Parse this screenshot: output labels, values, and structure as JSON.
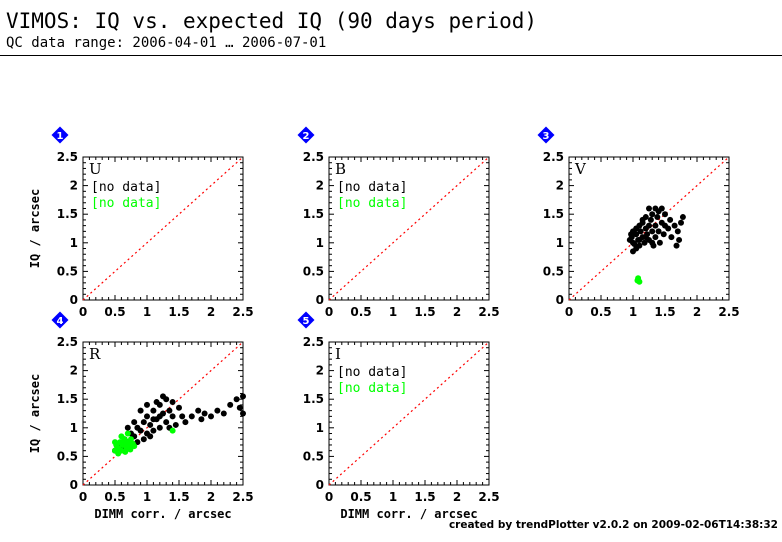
{
  "header": {
    "title": "VIMOS: IQ vs. expected IQ (90 days period)",
    "subtitle": "QC data range: 2006-04-01 … 2006-07-01"
  },
  "footer": {
    "credit": "created by trendPlotter v2.0.2 on 2009-02-06T14:38:32"
  },
  "colors": {
    "reference_line": "#ff0000",
    "series_black": "#000000",
    "series_green": "#00ff00",
    "badge": "#0000ff"
  },
  "chart_data": [
    {
      "type": "scatter",
      "number": "1",
      "filter": "U",
      "xlim": [
        0,
        2.5
      ],
      "ylim": [
        0,
        2.5
      ],
      "xticks": [
        "0",
        "0.5",
        "1",
        "1.5",
        "2",
        "2.5"
      ],
      "yticks": [
        "0",
        "0.5",
        "1",
        "1.5",
        "2",
        "2.5"
      ],
      "xlabel": "",
      "ylabel": "IQ / arcsec",
      "reference_line": "y = x",
      "no_data": [
        "[no data]",
        "[no data]"
      ],
      "series": [
        {
          "color": "#000000",
          "points": []
        },
        {
          "color": "#00ff00",
          "points": []
        }
      ]
    },
    {
      "type": "scatter",
      "number": "2",
      "filter": "B",
      "xlim": [
        0,
        2.5
      ],
      "ylim": [
        0,
        2.5
      ],
      "xticks": [
        "0",
        "0.5",
        "1",
        "1.5",
        "2",
        "2.5"
      ],
      "yticks": [
        "0",
        "0.5",
        "1",
        "1.5",
        "2",
        "2.5"
      ],
      "xlabel": "",
      "ylabel": "",
      "reference_line": "y = x",
      "no_data": [
        "[no data]",
        "[no data]"
      ],
      "series": [
        {
          "color": "#000000",
          "points": []
        },
        {
          "color": "#00ff00",
          "points": []
        }
      ]
    },
    {
      "type": "scatter",
      "number": "3",
      "filter": "V",
      "xlim": [
        0,
        2.5
      ],
      "ylim": [
        0,
        2.5
      ],
      "xticks": [
        "0",
        "0.5",
        "1",
        "1.5",
        "2",
        "2.5"
      ],
      "yticks": [
        "0",
        "0.5",
        "1",
        "1.5",
        "2",
        "2.5"
      ],
      "xlabel": "",
      "ylabel": "",
      "reference_line": "y = x",
      "no_data": [],
      "series": [
        {
          "color": "#000000",
          "points": [
            [
              0.95,
              1.05
            ],
            [
              0.98,
              1.1
            ],
            [
              1.0,
              1.0
            ],
            [
              1.0,
              1.2
            ],
            [
              1.02,
              0.98
            ],
            [
              1.05,
              1.15
            ],
            [
              1.05,
              1.25
            ],
            [
              1.08,
              1.05
            ],
            [
              1.1,
              1.3
            ],
            [
              1.1,
              0.95
            ],
            [
              1.12,
              1.2
            ],
            [
              1.15,
              1.1
            ],
            [
              1.15,
              1.35
            ],
            [
              1.18,
              1.0
            ],
            [
              1.2,
              1.25
            ],
            [
              1.2,
              1.45
            ],
            [
              1.22,
              1.15
            ],
            [
              1.25,
              1.3
            ],
            [
              1.25,
              1.05
            ],
            [
              1.28,
              1.4
            ],
            [
              1.3,
              1.2
            ],
            [
              1.3,
              1.5
            ],
            [
              1.32,
              0.95
            ],
            [
              1.35,
              1.1
            ],
            [
              1.35,
              1.3
            ],
            [
              1.38,
              1.45
            ],
            [
              1.4,
              1.2
            ],
            [
              1.4,
              1.55
            ],
            [
              1.42,
              1.0
            ],
            [
              1.45,
              1.35
            ],
            [
              1.48,
              1.15
            ],
            [
              1.5,
              1.3
            ],
            [
              1.5,
              1.5
            ],
            [
              1.55,
              1.25
            ],
            [
              1.58,
              1.4
            ],
            [
              1.6,
              1.1
            ],
            [
              1.65,
              1.3
            ],
            [
              1.7,
              1.2
            ],
            [
              1.75,
              1.35
            ],
            [
              1.78,
              1.45
            ],
            [
              1.68,
              0.95
            ],
            [
              1.72,
              1.05
            ],
            [
              1.0,
              0.85
            ],
            [
              1.05,
              0.9
            ],
            [
              1.15,
              1.4
            ],
            [
              1.25,
              1.6
            ],
            [
              1.35,
              1.6
            ],
            [
              1.45,
              1.6
            ],
            [
              0.97,
              1.15
            ],
            [
              1.1,
              1.05
            ],
            [
              1.2,
              1.1
            ],
            [
              1.3,
              1.0
            ]
          ]
        },
        {
          "color": "#00ff00",
          "points": [
            [
              1.08,
              0.38
            ],
            [
              1.1,
              0.32
            ],
            [
              1.07,
              0.34
            ]
          ]
        }
      ]
    },
    {
      "type": "scatter",
      "number": "4",
      "filter": "R",
      "xlim": [
        0,
        2.5
      ],
      "ylim": [
        0,
        2.5
      ],
      "xticks": [
        "0",
        "0.5",
        "1",
        "1.5",
        "2",
        "2.5"
      ],
      "yticks": [
        "0",
        "0.5",
        "1",
        "1.5",
        "2",
        "2.5"
      ],
      "xlabel": "DIMM corr. / arcsec",
      "ylabel": "IQ / arcsec",
      "reference_line": "y = x",
      "no_data": [],
      "series": [
        {
          "color": "#000000",
          "points": [
            [
              0.5,
              0.6
            ],
            [
              0.55,
              0.7
            ],
            [
              0.6,
              0.65
            ],
            [
              0.65,
              0.8
            ],
            [
              0.7,
              0.75
            ],
            [
              0.75,
              0.9
            ],
            [
              0.8,
              0.85
            ],
            [
              0.85,
              1.0
            ],
            [
              0.9,
              0.95
            ],
            [
              0.95,
              1.1
            ],
            [
              1.0,
              0.9
            ],
            [
              1.0,
              1.2
            ],
            [
              1.05,
              1.05
            ],
            [
              1.1,
              1.3
            ],
            [
              1.1,
              0.95
            ],
            [
              1.15,
              1.15
            ],
            [
              1.2,
              1.4
            ],
            [
              1.2,
              1.0
            ],
            [
              1.25,
              1.25
            ],
            [
              1.3,
              1.1
            ],
            [
              1.3,
              1.5
            ],
            [
              1.35,
              1.3
            ],
            [
              1.4,
              1.2
            ],
            [
              1.4,
              1.45
            ],
            [
              1.5,
              1.35
            ],
            [
              1.55,
              1.2
            ],
            [
              1.6,
              1.1
            ],
            [
              1.7,
              1.2
            ],
            [
              1.8,
              1.3
            ],
            [
              1.85,
              1.15
            ],
            [
              1.9,
              1.25
            ],
            [
              2.0,
              1.2
            ],
            [
              2.1,
              1.3
            ],
            [
              2.2,
              1.25
            ],
            [
              2.3,
              1.4
            ],
            [
              2.4,
              1.5
            ],
            [
              2.45,
              1.35
            ],
            [
              2.5,
              1.25
            ],
            [
              2.5,
              1.55
            ],
            [
              0.9,
              1.3
            ],
            [
              1.0,
              1.4
            ],
            [
              0.95,
              0.8
            ],
            [
              1.05,
              0.85
            ],
            [
              1.15,
              1.45
            ],
            [
              1.25,
              1.55
            ],
            [
              0.8,
              1.1
            ],
            [
              0.7,
              1.0
            ],
            [
              1.35,
              1.0
            ],
            [
              1.45,
              1.05
            ],
            [
              0.85,
              0.75
            ],
            [
              1.1,
              1.15
            ],
            [
              1.2,
              1.2
            ]
          ]
        },
        {
          "color": "#00ff00",
          "points": [
            [
              0.5,
              0.6
            ],
            [
              0.52,
              0.7
            ],
            [
              0.55,
              0.65
            ],
            [
              0.58,
              0.75
            ],
            [
              0.6,
              0.6
            ],
            [
              0.62,
              0.7
            ],
            [
              0.65,
              0.8
            ],
            [
              0.68,
              0.65
            ],
            [
              0.7,
              0.75
            ],
            [
              0.72,
              0.7
            ],
            [
              0.75,
              0.8
            ],
            [
              0.78,
              0.72
            ],
            [
              0.8,
              0.68
            ],
            [
              0.55,
              0.55
            ],
            [
              0.6,
              0.85
            ],
            [
              0.66,
              0.58
            ],
            [
              0.74,
              0.62
            ],
            [
              0.5,
              0.75
            ],
            [
              0.64,
              0.72
            ],
            [
              0.7,
              0.9
            ],
            [
              1.4,
              0.95
            ]
          ]
        }
      ]
    },
    {
      "type": "scatter",
      "number": "5",
      "filter": "I",
      "xlim": [
        0,
        2.5
      ],
      "ylim": [
        0,
        2.5
      ],
      "xticks": [
        "0",
        "0.5",
        "1",
        "1.5",
        "2",
        "2.5"
      ],
      "yticks": [
        "0",
        "0.5",
        "1",
        "1.5",
        "2",
        "2.5"
      ],
      "xlabel": "DIMM corr. / arcsec",
      "ylabel": "",
      "reference_line": "y = x",
      "no_data": [
        "[no data]",
        "[no data]"
      ],
      "series": [
        {
          "color": "#000000",
          "points": []
        },
        {
          "color": "#00ff00",
          "points": []
        }
      ]
    }
  ]
}
